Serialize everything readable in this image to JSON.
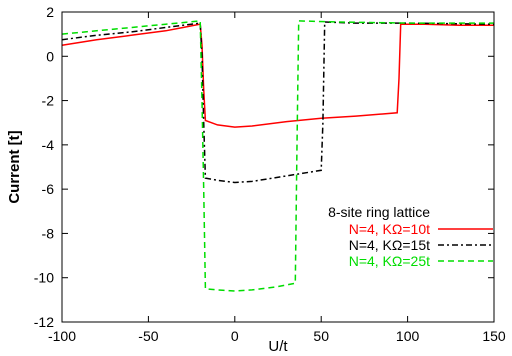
{
  "chart_data": {
    "type": "line",
    "title": "",
    "xlabel": "U/t",
    "ylabel": "Current [t]",
    "xlim": [
      -100,
      150
    ],
    "ylim": [
      -12,
      2
    ],
    "xticks": [
      -100,
      -50,
      0,
      50,
      100,
      150
    ],
    "yticks": [
      -12,
      -10,
      -8,
      -6,
      -4,
      -2,
      0,
      2
    ],
    "grid": false,
    "legend_title": "8-site ring lattice",
    "legend_position": "right",
    "series": [
      {
        "name": "N=4, KΩ=10t",
        "color": "#ff0000",
        "dash": "solid",
        "points": [
          [
            -100,
            0.5
          ],
          [
            -80,
            0.75
          ],
          [
            -60,
            0.95
          ],
          [
            -40,
            1.15
          ],
          [
            -30,
            1.3
          ],
          [
            -20,
            1.45
          ],
          [
            -19,
            0.5
          ],
          [
            -18,
            -1.5
          ],
          [
            -17,
            -2.9
          ],
          [
            -10,
            -3.1
          ],
          [
            0,
            -3.2
          ],
          [
            10,
            -3.15
          ],
          [
            30,
            -2.95
          ],
          [
            50,
            -2.8
          ],
          [
            70,
            -2.7
          ],
          [
            94,
            -2.55
          ],
          [
            95,
            -1.0
          ],
          [
            96,
            1.45
          ],
          [
            110,
            1.45
          ],
          [
            130,
            1.4
          ],
          [
            150,
            1.4
          ]
        ]
      },
      {
        "name": "N=4, KΩ=15t",
        "color": "#000000",
        "dash": "dashdot",
        "points": [
          [
            -100,
            0.75
          ],
          [
            -80,
            0.95
          ],
          [
            -60,
            1.1
          ],
          [
            -40,
            1.3
          ],
          [
            -20,
            1.5
          ],
          [
            -19,
            0.0
          ],
          [
            -18,
            -3.0
          ],
          [
            -17,
            -5.5
          ],
          [
            -10,
            -5.6
          ],
          [
            0,
            -5.7
          ],
          [
            10,
            -5.65
          ],
          [
            30,
            -5.4
          ],
          [
            50,
            -5.15
          ],
          [
            51,
            -3.0
          ],
          [
            52,
            1.55
          ],
          [
            70,
            1.5
          ],
          [
            100,
            1.5
          ],
          [
            150,
            1.45
          ]
        ]
      },
      {
        "name": "N=4, KΩ=25t",
        "color": "#00dd00",
        "dash": "dashed",
        "points": [
          [
            -100,
            1.0
          ],
          [
            -80,
            1.15
          ],
          [
            -60,
            1.3
          ],
          [
            -40,
            1.45
          ],
          [
            -20,
            1.6
          ],
          [
            -19,
            -2.0
          ],
          [
            -18,
            -6.0
          ],
          [
            -17,
            -10.5
          ],
          [
            -10,
            -10.55
          ],
          [
            0,
            -10.6
          ],
          [
            10,
            -10.55
          ],
          [
            25,
            -10.4
          ],
          [
            35,
            -10.25
          ],
          [
            36,
            -4.0
          ],
          [
            37,
            1.6
          ],
          [
            60,
            1.55
          ],
          [
            100,
            1.5
          ],
          [
            150,
            1.5
          ]
        ]
      }
    ]
  }
}
